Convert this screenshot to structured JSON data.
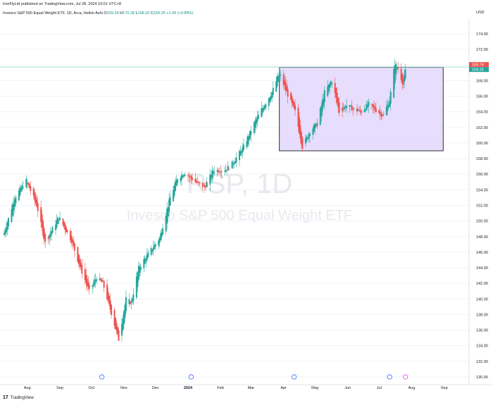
{
  "header": {
    "published": "IronFlyLtd published on TradingView.com, Jul 28, 2024 10:01 UTC+8",
    "instrument": "Invesco S&P 500 Equal Weight ETF, 1D, Arca, Heikin Ashi",
    "o_label": "O",
    "o_value": "169.24",
    "h_label": "H",
    "h_value": "170.28",
    "l_label": "L",
    "l_value": "168.26",
    "c_label": "C",
    "c_value": "169.25",
    "change": "+1.49 (+0.88%)"
  },
  "watermark": {
    "symbol": "RSP, 1D",
    "name": "Invesco S&P 500 Equal Weight ETF"
  },
  "footer": {
    "brand": "TradingView",
    "logo_text": "17"
  },
  "colors": {
    "up": "#26a69a",
    "down": "#ef5350",
    "box_fill": "#e3d7fb",
    "box_stroke": "#2a2e39",
    "price_line": "#9fdcd3"
  },
  "chart_data": {
    "type": "candlestick",
    "style": "Heikin Ashi",
    "currency": "USD",
    "ylim": [
      130,
      174
    ],
    "y_ticks": [
      "174.00",
      "172.00",
      "170.00",
      "168.00",
      "166.00",
      "164.00",
      "162.00",
      "160.00",
      "158.00",
      "156.00",
      "154.00",
      "152.00",
      "150.00",
      "148.00",
      "146.00",
      "144.00",
      "142.00",
      "140.00",
      "138.00",
      "136.00",
      "134.00",
      "132.00",
      "130.00"
    ],
    "x_ticks": [
      "Aug",
      "Sep",
      "Oct",
      "Nov",
      "Dec",
      "2024",
      "Feb",
      "Mar",
      "Apr",
      "May",
      "Jun",
      "Jul",
      "Aug",
      "Sep"
    ],
    "last_price_labels": [
      "169.74",
      "169.25"
    ],
    "price_path": [
      {
        "date": "2023-07-10",
        "close": 148.5
      },
      {
        "date": "2023-07-20",
        "close": 153.0
      },
      {
        "date": "2023-07-31",
        "close": 155.2
      },
      {
        "date": "2023-08-10",
        "close": 152.0
      },
      {
        "date": "2023-08-18",
        "close": 147.2
      },
      {
        "date": "2023-08-31",
        "close": 150.5
      },
      {
        "date": "2023-09-12",
        "close": 147.5
      },
      {
        "date": "2023-09-20",
        "close": 144.2
      },
      {
        "date": "2023-09-29",
        "close": 141.0
      },
      {
        "date": "2023-10-06",
        "close": 142.8
      },
      {
        "date": "2023-10-12",
        "close": 142.0
      },
      {
        "date": "2023-10-20",
        "close": 138.2
      },
      {
        "date": "2023-10-27",
        "close": 134.8
      },
      {
        "date": "2023-11-03",
        "close": 140.0
      },
      {
        "date": "2023-11-08",
        "close": 139.5
      },
      {
        "date": "2023-11-15",
        "close": 144.0
      },
      {
        "date": "2023-11-28",
        "close": 146.5
      },
      {
        "date": "2023-12-05",
        "close": 147.8
      },
      {
        "date": "2023-12-15",
        "close": 153.0
      },
      {
        "date": "2023-12-22",
        "close": 155.5
      },
      {
        "date": "2023-12-29",
        "close": 156.2
      },
      {
        "date": "2024-01-08",
        "close": 155.0
      },
      {
        "date": "2024-01-17",
        "close": 154.3
      },
      {
        "date": "2024-01-25",
        "close": 156.5
      },
      {
        "date": "2024-02-05",
        "close": 156.5
      },
      {
        "date": "2024-02-13",
        "close": 157.5
      },
      {
        "date": "2024-02-23",
        "close": 159.5
      },
      {
        "date": "2024-03-04",
        "close": 162.5
      },
      {
        "date": "2024-03-12",
        "close": 164.5
      },
      {
        "date": "2024-03-21",
        "close": 166.5
      },
      {
        "date": "2024-03-28",
        "close": 169.0
      },
      {
        "date": "2024-04-04",
        "close": 166.5
      },
      {
        "date": "2024-04-12",
        "close": 164.0
      },
      {
        "date": "2024-04-19",
        "close": 159.5
      },
      {
        "date": "2024-04-26",
        "close": 161.5
      },
      {
        "date": "2024-05-03",
        "close": 162.5
      },
      {
        "date": "2024-05-10",
        "close": 166.5
      },
      {
        "date": "2024-05-17",
        "close": 168.0
      },
      {
        "date": "2024-05-24",
        "close": 164.0
      },
      {
        "date": "2024-05-31",
        "close": 164.8
      },
      {
        "date": "2024-06-07",
        "close": 164.3
      },
      {
        "date": "2024-06-14",
        "close": 164.0
      },
      {
        "date": "2024-06-21",
        "close": 165.0
      },
      {
        "date": "2024-06-28",
        "close": 164.2
      },
      {
        "date": "2024-07-05",
        "close": 163.5
      },
      {
        "date": "2024-07-11",
        "close": 165.5
      },
      {
        "date": "2024-07-16",
        "close": 170.2
      },
      {
        "date": "2024-07-19",
        "close": 169.5
      },
      {
        "date": "2024-07-24",
        "close": 167.5
      },
      {
        "date": "2024-07-26",
        "close": 169.25
      }
    ],
    "rectangle": {
      "x_start": "2024-03-28",
      "x_end": "2024-08-31",
      "y_low": 159.0,
      "y_high": 169.7
    },
    "price_line": 169.74
  }
}
